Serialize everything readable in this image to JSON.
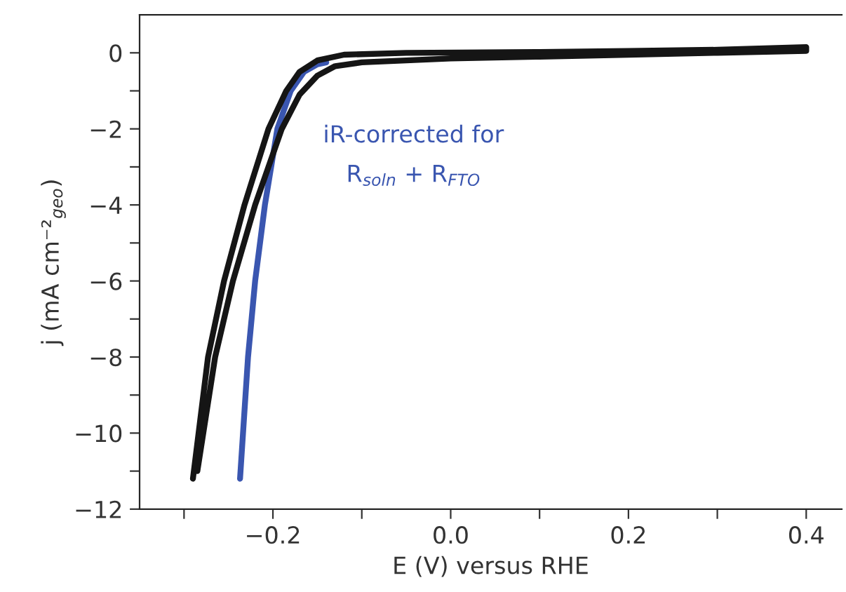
{
  "chart_data": {
    "type": "line",
    "xlabel": "E (V) versus RHE",
    "ylabel": "j (mA cm⁻²$_{geo}$)",
    "xlim": [
      -0.35,
      0.44
    ],
    "ylim": [
      -12,
      1
    ],
    "xticks": [
      {
        "value": -0.3,
        "label": null
      },
      {
        "value": -0.2,
        "label": "−0.2"
      },
      {
        "value": -0.1,
        "label": null
      },
      {
        "value": 0,
        "label": "0.0"
      },
      {
        "value": 0.1,
        "label": null
      },
      {
        "value": 0.2,
        "label": "0.2"
      },
      {
        "value": 0.3,
        "label": null
      },
      {
        "value": 0.4,
        "label": "0.4"
      }
    ],
    "yticks": [
      {
        "value": -12,
        "label": "−12"
      },
      {
        "value": -11,
        "label": null
      },
      {
        "value": -10,
        "label": "−10"
      },
      {
        "value": -9,
        "label": null
      },
      {
        "value": -8,
        "label": "−8"
      },
      {
        "value": -7,
        "label": null
      },
      {
        "value": -6,
        "label": "−6"
      },
      {
        "value": -5,
        "label": null
      },
      {
        "value": -4,
        "label": "−4"
      },
      {
        "value": -3,
        "label": null
      },
      {
        "value": -2,
        "label": "−2"
      },
      {
        "value": -1,
        "label": null
      },
      {
        "value": 0,
        "label": "0"
      }
    ],
    "grid": false,
    "legend": false,
    "marker": "none",
    "line_style": "solid",
    "series": [
      {
        "color": "#3a56b0",
        "x": [
          -0.237,
          -0.228,
          -0.22,
          -0.209,
          -0.195,
          -0.18,
          -0.165,
          -0.15,
          -0.14
        ],
        "values": [
          -11.2,
          -8,
          -6,
          -4,
          -2,
          -1,
          -0.5,
          -0.3,
          -0.25
        ]
      },
      {
        "color": "#151515",
        "x": [
          -0.29,
          -0.273,
          -0.255,
          -0.232,
          -0.205,
          -0.185,
          -0.17,
          -0.15,
          -0.12,
          -0.05,
          0.1,
          0.2,
          0.3,
          0.4,
          0.4,
          0.3,
          0.2,
          0.1,
          0.0,
          -0.1,
          -0.13,
          -0.15,
          -0.17,
          -0.19,
          -0.22,
          -0.245,
          -0.265,
          -0.285
        ],
        "values": [
          -11.2,
          -8,
          -6,
          -4,
          -2,
          -1,
          -0.5,
          -0.2,
          -0.05,
          0,
          0.02,
          0.05,
          0.08,
          0.15,
          0.05,
          0,
          -0.05,
          -0.1,
          -0.15,
          -0.25,
          -0.35,
          -0.6,
          -1.1,
          -2,
          -4,
          -6,
          -8,
          -11
        ]
      }
    ],
    "annotations": [
      "iR-corrected for",
      "R$_{soln}$ + R$_{FTO}$"
    ]
  }
}
